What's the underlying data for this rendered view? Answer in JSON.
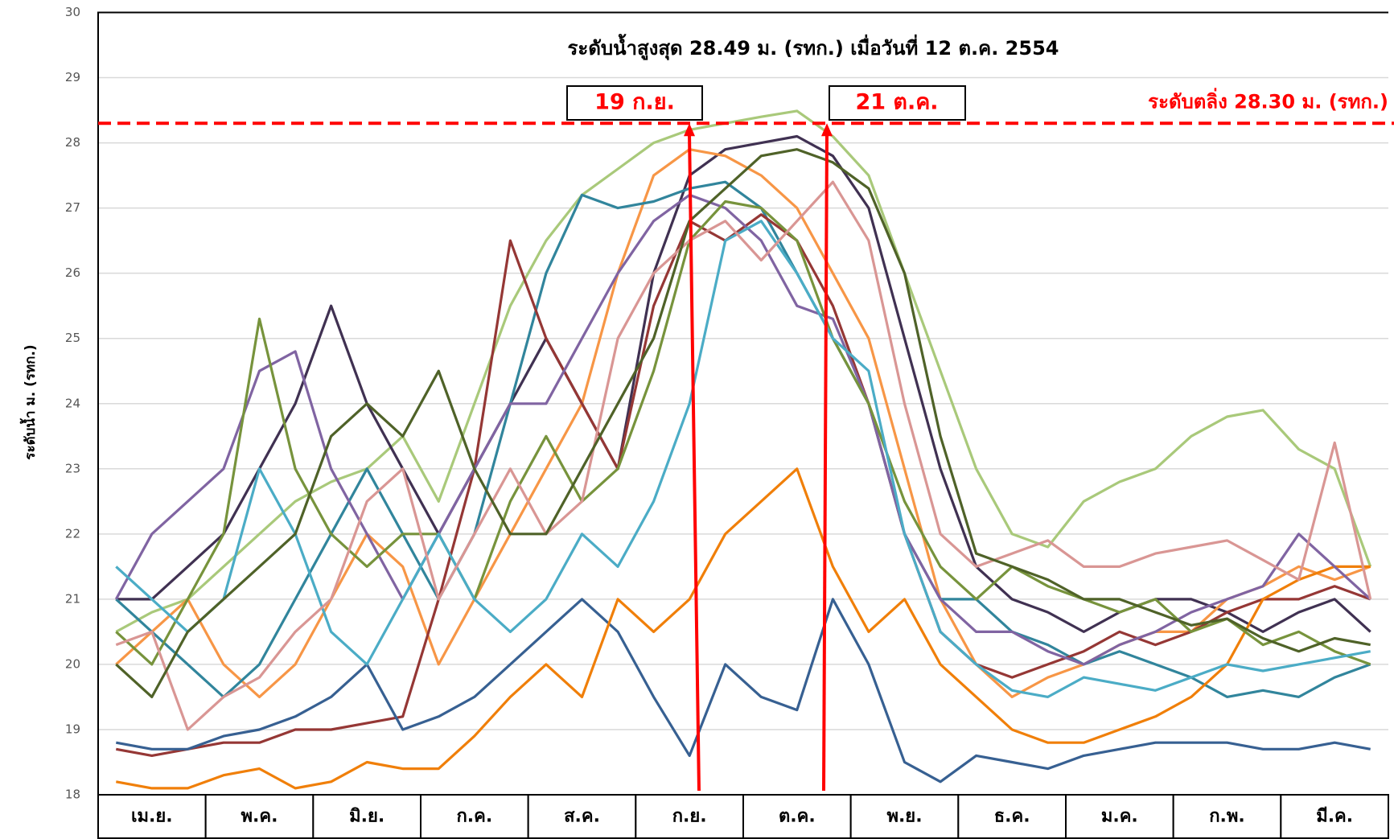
{
  "chart_data": {
    "type": "line",
    "y_label": "ระดับน้ำ ม. (รทก.)",
    "annotations": [
      "ระดับน้ำสูงสุด 28.49 ม. (รทก.) เมื่อวันที่ 12 ต.ค. 2554",
      "19 ก.ย.",
      "21 ต.ค."
    ],
    "threshold": {
      "label": "ระดับตลิ่ง 28.30 ม. (รทก.)",
      "value": 28.3,
      "color": "#ff0000"
    },
    "categories": [
      null,
      "เม.ย.",
      null,
      null,
      "พ.ค.",
      null,
      null,
      "มิ.ย.",
      null,
      null,
      "ก.ค.",
      null,
      null,
      "ส.ค.",
      null,
      null,
      "ก.ย.",
      null,
      null,
      "ต.ค.",
      null,
      null,
      "พ.ย.",
      null,
      null,
      "ธ.ค.",
      null,
      null,
      "ม.ค.",
      null,
      null,
      "ก.พ.",
      null,
      null,
      "มี.ค.",
      null
    ],
    "ylim": [
      18,
      30
    ],
    "yticks": [
      18,
      19,
      20,
      21,
      22,
      23,
      24,
      25,
      26,
      27,
      28,
      29,
      30
    ],
    "grid": true,
    "series": [
      {
        "color": "#a9c97a",
        "values": [
          20.5,
          20.8,
          21.0,
          21.5,
          22.0,
          22.5,
          22.8,
          23.0,
          23.5,
          22.5,
          24.0,
          25.5,
          26.5,
          27.2,
          27.6,
          28.0,
          28.2,
          28.3,
          28.4,
          28.49,
          28.1,
          27.5,
          26.0,
          24.5,
          23.0,
          22.0,
          21.8,
          22.5,
          22.8,
          23.0,
          23.5,
          23.8,
          23.9,
          23.3,
          23.0,
          21.5
        ]
      },
      {
        "color": "#403152",
        "values": [
          21,
          21,
          21.5,
          22,
          23,
          24,
          25.5,
          24,
          23,
          22,
          23,
          24,
          25,
          24,
          23,
          26,
          27.5,
          27.9,
          28.0,
          28.1,
          27.8,
          27,
          25,
          23,
          21.5,
          21,
          20.8,
          20.5,
          20.8,
          21,
          21,
          20.8,
          20.5,
          20.8,
          21,
          20.5
        ]
      },
      {
        "color": "#f79646",
        "values": [
          20,
          20.5,
          21,
          20,
          19.5,
          20,
          21,
          22,
          21.5,
          20,
          21,
          22,
          23,
          24,
          26,
          27.5,
          27.9,
          27.8,
          27.5,
          27,
          26,
          25,
          23,
          21,
          20,
          19.5,
          19.8,
          20,
          20.3,
          20.5,
          20.5,
          21,
          21.2,
          21.5,
          21.3,
          21.5
        ]
      },
      {
        "color": "#31859c",
        "values": [
          21,
          20.5,
          20,
          19.5,
          20,
          21,
          22,
          23,
          22,
          21,
          22,
          24,
          26,
          27.2,
          27,
          27.1,
          27.3,
          27.4,
          27,
          26,
          25,
          24,
          22,
          21,
          21,
          20.5,
          20.3,
          20,
          20.2,
          20,
          19.8,
          19.5,
          19.6,
          19.5,
          19.8,
          20
        ]
      },
      {
        "color": "#953735",
        "values": [
          18.7,
          18.6,
          18.7,
          18.8,
          18.8,
          19,
          19,
          19.1,
          19.2,
          21,
          23,
          26.5,
          25,
          24,
          23,
          25.5,
          26.8,
          26.5,
          26.9,
          26.5,
          25.5,
          24,
          22,
          20.5,
          20,
          19.8,
          20,
          20.2,
          20.5,
          20.3,
          20.5,
          20.8,
          21,
          21,
          21.2,
          21
        ]
      },
      {
        "color": "#376092",
        "values": [
          18.8,
          18.7,
          18.7,
          18.9,
          19,
          19.2,
          19.5,
          20,
          19,
          19.2,
          19.5,
          20,
          20.5,
          21,
          20.5,
          19.5,
          18.6,
          20,
          19.5,
          19.3,
          21,
          20,
          18.5,
          18.2,
          18.6,
          18.5,
          18.4,
          18.6,
          18.7,
          18.8,
          18.8,
          18.8,
          18.7,
          18.7,
          18.8,
          18.7
        ]
      },
      {
        "color": "#f07f09",
        "values": [
          18.2,
          18.1,
          18.1,
          18.3,
          18.4,
          18.1,
          18.2,
          18.5,
          18.4,
          18.4,
          18.9,
          19.5,
          20,
          19.5,
          21,
          20.5,
          21,
          22,
          22.5,
          23,
          21.5,
          20.5,
          21,
          20,
          19.5,
          19,
          18.8,
          18.8,
          19,
          19.2,
          19.5,
          20,
          21,
          21.3,
          21.5,
          21.5
        ]
      },
      {
        "color": "#8064a2",
        "values": [
          21,
          22,
          22.5,
          23,
          24.5,
          24.8,
          23,
          22,
          21,
          22,
          23,
          24,
          24,
          25,
          26,
          26.8,
          27.2,
          27,
          26.5,
          25.5,
          25.3,
          24,
          22,
          21,
          20.5,
          20.5,
          20.2,
          20,
          20.3,
          20.5,
          20.8,
          21,
          21.2,
          22,
          21.5,
          21
        ]
      },
      {
        "color": "#77933c",
        "values": [
          20.5,
          20,
          21,
          22,
          25.3,
          23,
          22,
          21.5,
          22,
          22,
          21,
          22.5,
          23.5,
          22.5,
          23,
          24.5,
          26.5,
          27.1,
          27,
          26.5,
          25,
          24,
          22.5,
          21.5,
          21,
          21.5,
          21.2,
          21,
          20.8,
          21,
          20.5,
          20.7,
          20.3,
          20.5,
          20.2,
          20
        ]
      },
      {
        "color": "#4bacc6",
        "values": [
          21.5,
          21,
          20.5,
          21,
          23,
          22,
          20.5,
          20,
          21,
          22,
          21,
          20.5,
          21,
          22,
          21.5,
          22.5,
          24,
          26.5,
          26.8,
          26,
          25,
          24.5,
          22,
          20.5,
          20,
          19.6,
          19.5,
          19.8,
          19.7,
          19.6,
          19.8,
          20,
          19.9,
          20,
          20.1,
          20.2
        ]
      },
      {
        "color": "#d99694",
        "values": [
          20.3,
          20.5,
          19,
          19.5,
          19.8,
          20.5,
          21,
          22.5,
          23,
          21,
          22,
          23,
          22,
          22.5,
          25,
          26,
          26.5,
          26.8,
          26.2,
          26.8,
          27.4,
          26.5,
          24,
          22,
          21.5,
          21.7,
          21.9,
          21.5,
          21.5,
          21.7,
          21.8,
          21.9,
          21.6,
          21.3,
          23.4,
          21
        ]
      },
      {
        "color": "#4f6228",
        "values": [
          20,
          19.5,
          20.5,
          21,
          21.5,
          22,
          23.5,
          24,
          23.5,
          24.5,
          23,
          22,
          22,
          23,
          24,
          25,
          26.8,
          27.3,
          27.8,
          27.9,
          27.7,
          27.3,
          26,
          23.5,
          21.7,
          21.5,
          21.3,
          21,
          21,
          20.8,
          20.6,
          20.7,
          20.4,
          20.2,
          20.4,
          20.3
        ]
      }
    ]
  }
}
